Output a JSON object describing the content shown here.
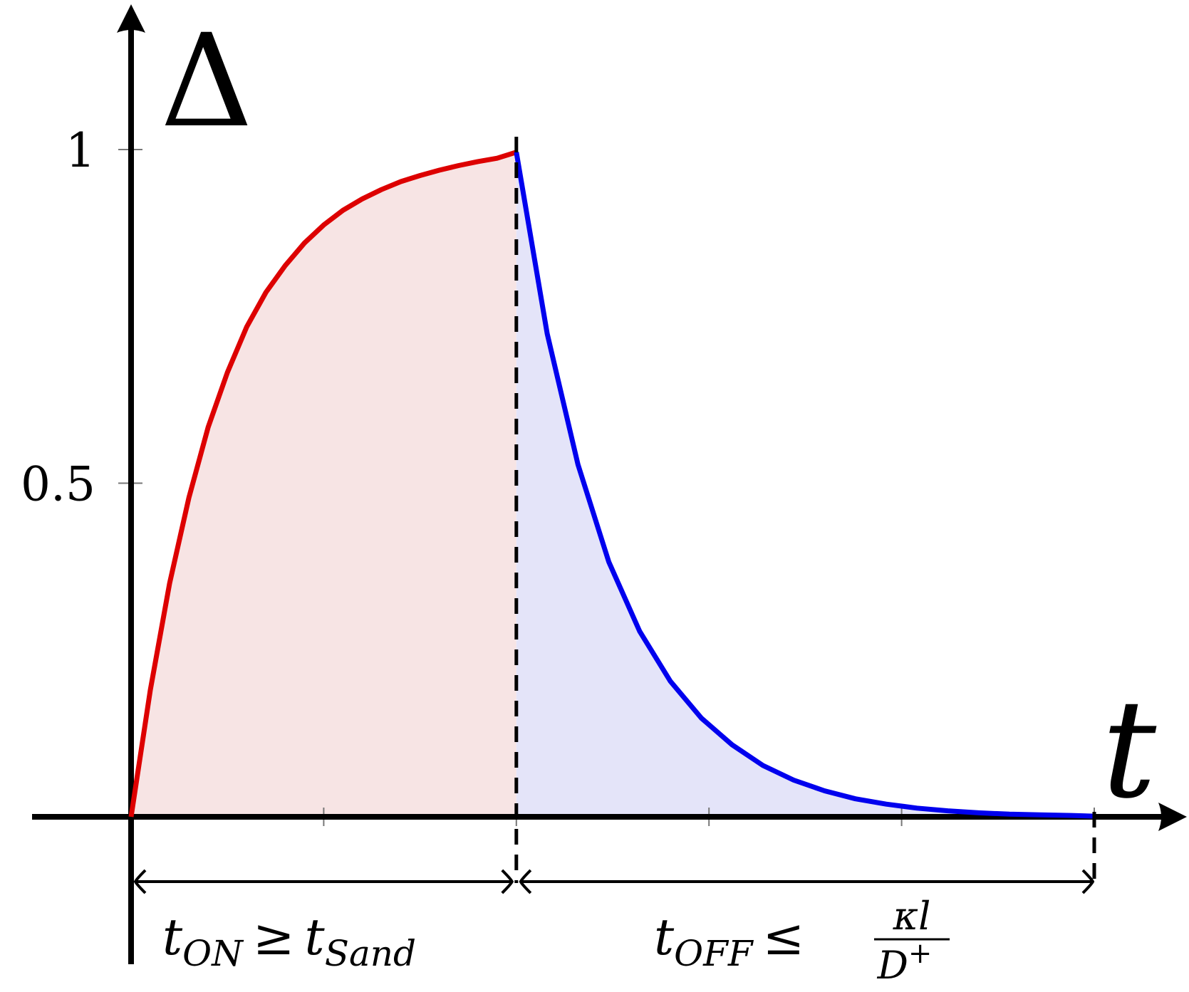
{
  "chart_data": {
    "type": "area",
    "title": "",
    "xlabel": "t",
    "ylabel": "Δ",
    "xlim": [
      0,
      5
    ],
    "ylim": [
      0,
      1
    ],
    "yticks": [
      {
        "value": 0.5,
        "label": "0.5"
      },
      {
        "value": 1,
        "label": "1"
      }
    ],
    "xticks": [
      0,
      1,
      2,
      3,
      4,
      5
    ],
    "grid": false,
    "legend": "none",
    "switch_time": 2,
    "series": [
      {
        "phase": "on",
        "color": "#dd0000",
        "fill": "#f7e4e4",
        "x": [
          0,
          0.1,
          0.2,
          0.3,
          0.4,
          0.5,
          0.6,
          0.7,
          0.8,
          0.9,
          1.0,
          1.1,
          1.2,
          1.3,
          1.4,
          1.5,
          1.6,
          1.7,
          1.8,
          1.9,
          2.0
        ],
        "y": [
          0,
          0.19,
          0.35,
          0.478,
          0.584,
          0.666,
          0.734,
          0.786,
          0.826,
          0.86,
          0.887,
          0.909,
          0.926,
          0.94,
          0.952,
          0.961,
          0.969,
          0.976,
          0.982,
          0.987,
          0.996
        ]
      },
      {
        "phase": "off",
        "color": "#0000ee",
        "fill": "#e4e4f9",
        "x": [
          2.0,
          2.16,
          2.32,
          2.48,
          2.64,
          2.8,
          2.96,
          3.12,
          3.28,
          3.44,
          3.6,
          3.76,
          3.92,
          4.08,
          4.24,
          4.4,
          4.56,
          4.72,
          4.88,
          5.0
        ],
        "y": [
          0.996,
          0.724,
          0.528,
          0.382,
          0.278,
          0.203,
          0.148,
          0.108,
          0.077,
          0.055,
          0.039,
          0.027,
          0.019,
          0.013,
          0.009,
          0.006,
          0.004,
          0.003,
          0.002,
          0.001
        ]
      }
    ],
    "annotations": {
      "on": {
        "base": "t",
        "sub": "ON",
        "relation": "≥",
        "rhs_base": "t",
        "rhs_sub": "Sand"
      },
      "off": {
        "base": "t",
        "sub": "OFF",
        "relation": "≤",
        "frac_num": "κl",
        "frac_den_base": "D",
        "frac_den_sup": "+"
      }
    }
  }
}
